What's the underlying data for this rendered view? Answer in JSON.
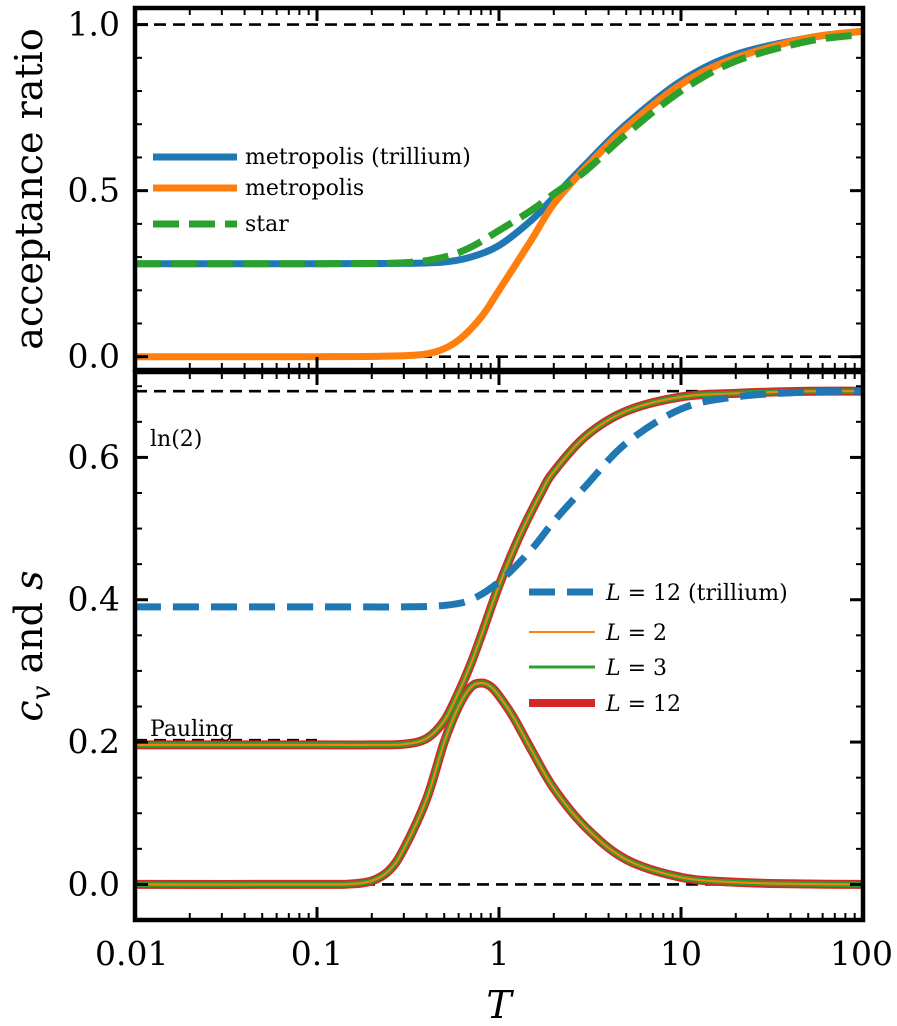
{
  "chart_data": [
    {
      "type": "line",
      "panel": "top",
      "x_scale": "log",
      "xlim": [
        0.01,
        100
      ],
      "ylim": [
        -0.04,
        1.05
      ],
      "ylabel": "acceptance ratio",
      "y_ticks": [
        "0.0",
        "0.5",
        "1.0"
      ],
      "reference_lines": [
        0.0,
        1.0
      ],
      "legend_position": "center-left",
      "series": [
        {
          "name": "metropolis (trillium)",
          "color": "#1f77b4",
          "style": "solid",
          "x": [
            0.01,
            0.1,
            0.3,
            0.5,
            0.7,
            1.0,
            1.5,
            2.0,
            3.0,
            5.0,
            10.0,
            20.0,
            50.0,
            100.0
          ],
          "y": [
            0.28,
            0.28,
            0.281,
            0.285,
            0.3,
            0.335,
            0.41,
            0.48,
            0.58,
            0.7,
            0.83,
            0.91,
            0.96,
            0.98
          ]
        },
        {
          "name": "metropolis",
          "color": "#ff7f0e",
          "style": "solid",
          "x": [
            0.01,
            0.1,
            0.3,
            0.45,
            0.6,
            0.8,
            1.0,
            1.5,
            2.0,
            3.0,
            5.0,
            10.0,
            20.0,
            50.0,
            100.0
          ],
          "y": [
            0.0,
            0.0,
            0.003,
            0.015,
            0.05,
            0.12,
            0.2,
            0.35,
            0.46,
            0.57,
            0.69,
            0.82,
            0.9,
            0.96,
            0.98
          ]
        },
        {
          "name": "star",
          "color": "#2ca02c",
          "style": "dashed",
          "x": [
            0.01,
            0.1,
            0.3,
            0.5,
            0.7,
            1.0,
            1.5,
            2.0,
            3.0,
            5.0,
            10.0,
            20.0,
            50.0,
            100.0
          ],
          "y": [
            0.28,
            0.28,
            0.283,
            0.3,
            0.33,
            0.38,
            0.44,
            0.49,
            0.56,
            0.67,
            0.8,
            0.89,
            0.95,
            0.97
          ]
        }
      ]
    },
    {
      "type": "line",
      "panel": "bottom",
      "x_scale": "log",
      "xlim": [
        0.01,
        100
      ],
      "ylim": [
        -0.05,
        0.72
      ],
      "xlabel": "T",
      "ylabel_parts": [
        "c",
        "v",
        " and ",
        "s"
      ],
      "x_ticks": [
        "0.01",
        "0.1",
        "1",
        "10",
        "100"
      ],
      "y_ticks": [
        "0.0",
        "0.2",
        "0.4",
        "0.6"
      ],
      "reference_lines": [
        0.0,
        0.6931
      ],
      "pauling_line": 0.2027,
      "annotations": [
        "ln(2)",
        "Pauling"
      ],
      "legend_position": "center-right",
      "series": [
        {
          "name": "L = 12 (trillium)",
          "label_parts": [
            "L",
            " = 12 (trillium)"
          ],
          "color": "#1f77b4",
          "style": "dashed",
          "x": [
            0.01,
            0.1,
            0.3,
            0.5,
            0.7,
            1.0,
            1.5,
            2.0,
            3.0,
            5.0,
            10.0,
            20.0,
            50.0,
            100.0
          ],
          "y": [
            0.39,
            0.39,
            0.39,
            0.392,
            0.4,
            0.425,
            0.47,
            0.51,
            0.56,
            0.62,
            0.668,
            0.685,
            0.692,
            0.693
          ]
        },
        {
          "name": "L = 2",
          "label_parts": [
            "L",
            " = 2"
          ],
          "color": "#ff7f0e",
          "style": "solid",
          "x": [
            0.01,
            0.1,
            0.2,
            0.3,
            0.4,
            0.5,
            0.6,
            0.7,
            0.8,
            1.0,
            1.3,
            1.7,
            2.0,
            3.0,
            5.0,
            10.0,
            20.0,
            50.0,
            100.0
          ],
          "y": [
            0.196,
            0.196,
            0.196,
            0.197,
            0.205,
            0.23,
            0.27,
            0.31,
            0.35,
            0.42,
            0.49,
            0.55,
            0.58,
            0.63,
            0.665,
            0.685,
            0.69,
            0.693,
            0.693
          ]
        },
        {
          "name": "L = 3",
          "label_parts": [
            "L",
            " = 3"
          ],
          "color": "#2ca02c",
          "style": "solid",
          "x": [
            0.01,
            0.1,
            0.2,
            0.3,
            0.4,
            0.5,
            0.6,
            0.7,
            0.8,
            1.0,
            1.3,
            1.7,
            2.0,
            3.0,
            5.0,
            10.0,
            20.0,
            50.0,
            100.0
          ],
          "y": [
            0.196,
            0.196,
            0.196,
            0.197,
            0.205,
            0.23,
            0.27,
            0.31,
            0.35,
            0.42,
            0.49,
            0.55,
            0.58,
            0.63,
            0.665,
            0.685,
            0.69,
            0.693,
            0.693
          ]
        },
        {
          "name": "L = 12",
          "label_parts": [
            "L",
            " = 12"
          ],
          "color": "#d62728",
          "style": "solid",
          "x": [
            0.01,
            0.1,
            0.2,
            0.3,
            0.4,
            0.5,
            0.6,
            0.7,
            0.8,
            1.0,
            1.3,
            1.7,
            2.0,
            3.0,
            5.0,
            10.0,
            20.0,
            50.0,
            100.0
          ],
          "y": [
            0.196,
            0.196,
            0.196,
            0.197,
            0.205,
            0.23,
            0.27,
            0.31,
            0.35,
            0.42,
            0.49,
            0.55,
            0.58,
            0.63,
            0.665,
            0.685,
            0.69,
            0.693,
            0.693
          ]
        }
      ],
      "cv_curve": {
        "x": [
          0.01,
          0.1,
          0.15,
          0.2,
          0.25,
          0.3,
          0.4,
          0.5,
          0.6,
          0.7,
          0.8,
          0.9,
          1.0,
          1.2,
          1.5,
          2.0,
          3.0,
          5.0,
          10.0,
          20.0,
          50.0,
          100.0
        ],
        "y": [
          0.0,
          0.0,
          0.0005,
          0.005,
          0.02,
          0.05,
          0.12,
          0.2,
          0.25,
          0.277,
          0.283,
          0.278,
          0.265,
          0.235,
          0.19,
          0.135,
          0.08,
          0.035,
          0.01,
          0.003,
          0.0005,
          0.0001
        ]
      }
    }
  ]
}
